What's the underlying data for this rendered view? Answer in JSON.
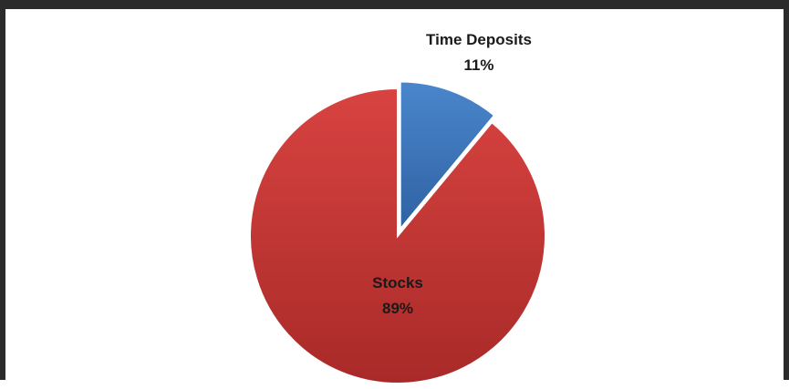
{
  "chart_data": {
    "type": "pie",
    "title": "",
    "slices": [
      {
        "label": "Time Deposits",
        "value": 11,
        "value_label": "11%",
        "color": "#3e78bf"
      },
      {
        "label": "Stocks",
        "value": 89,
        "value_label": "89%",
        "color": "#c93a38"
      }
    ],
    "start_angle_deg": 0,
    "direction": "clockwise",
    "exploded_slice": "Time Deposits",
    "legend": "none",
    "labels_outside": [
      "Time Deposits"
    ],
    "labels_inside": [
      "Stocks"
    ]
  }
}
